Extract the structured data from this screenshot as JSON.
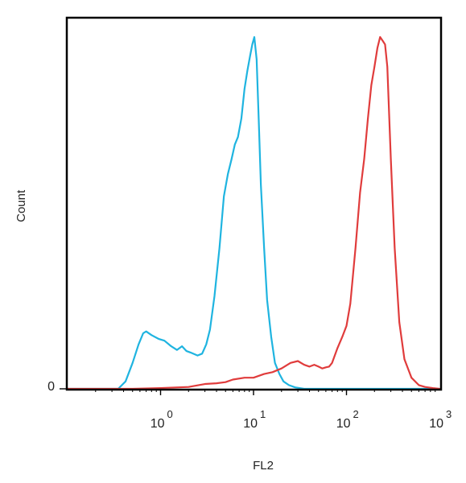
{
  "chart_data": {
    "type": "line",
    "title": "",
    "xlabel": "FL2",
    "ylabel": "Count",
    "x_scale": "log",
    "xlim": [
      0.1,
      1000
    ],
    "ylim": [
      0,
      100
    ],
    "y_ticks": [
      {
        "value": 0,
        "label": "0"
      }
    ],
    "x_ticks": [
      {
        "value": 1,
        "base": "10",
        "exp": "0"
      },
      {
        "value": 10,
        "base": "10",
        "exp": "1"
      },
      {
        "value": 100,
        "base": "10",
        "exp": "2"
      },
      {
        "value": 1000,
        "base": "10",
        "exp": "3"
      }
    ],
    "grid": false,
    "legend": "none",
    "series": [
      {
        "color": "#1fb4e0",
        "x": [
          0.1,
          0.2,
          0.35,
          0.42,
          0.5,
          0.58,
          0.65,
          0.7,
          0.8,
          0.95,
          1.1,
          1.3,
          1.5,
          1.7,
          1.9,
          2.1,
          2.5,
          2.8,
          3.1,
          3.4,
          3.8,
          4.3,
          4.8,
          5.3,
          5.8,
          6.3,
          6.8,
          7.4,
          8.0,
          8.6,
          9.2,
          9.7,
          10.2,
          10.8,
          11.4,
          12.0,
          13.0,
          14.0,
          15.5,
          17.0,
          19.0,
          21.0,
          24.0,
          28.0,
          35.0,
          50.0,
          100.0,
          1000.0
        ],
        "y": [
          0,
          0,
          0,
          2,
          7,
          12,
          15,
          15.5,
          14.5,
          13.5,
          13,
          11.5,
          10.5,
          11.5,
          10.2,
          9.8,
          9,
          9.5,
          12,
          16,
          25,
          38,
          52,
          58,
          62,
          66,
          68,
          73,
          81,
          86,
          90,
          93,
          95,
          89,
          72,
          55,
          38,
          24,
          14,
          7,
          4,
          2,
          1,
          0.4,
          0,
          0,
          0,
          0
        ]
      },
      {
        "color": "#e03c3c",
        "x": [
          0.1,
          0.5,
          1.0,
          2.0,
          3.0,
          4.0,
          5.0,
          6.0,
          8.0,
          10.0,
          13.0,
          16.0,
          20.0,
          25.0,
          30.0,
          35.0,
          40.0,
          45.0,
          50.0,
          55.0,
          60.0,
          65.0,
          70.0,
          80.0,
          90.0,
          100.0,
          110.0,
          125.0,
          140.0,
          155.0,
          170.0,
          185.0,
          200.0,
          215.0,
          230.0,
          245.0,
          260.0,
          275.0,
          300.0,
          330.0,
          370.0,
          420.0,
          500.0,
          600.0,
          700.0,
          850.0,
          1000.0
        ],
        "y": [
          0,
          0,
          0.2,
          0.5,
          1.3,
          1.5,
          1.8,
          2.5,
          3,
          3,
          4,
          4.5,
          5.5,
          7,
          7.5,
          6.5,
          6,
          6.5,
          6,
          5.5,
          5.8,
          6,
          7,
          11,
          14,
          17,
          23,
          38,
          53,
          62,
          73,
          82,
          87,
          92,
          95,
          94,
          93,
          87,
          62,
          38,
          18,
          8,
          3,
          1,
          0.5,
          0.2,
          0
        ]
      }
    ]
  }
}
